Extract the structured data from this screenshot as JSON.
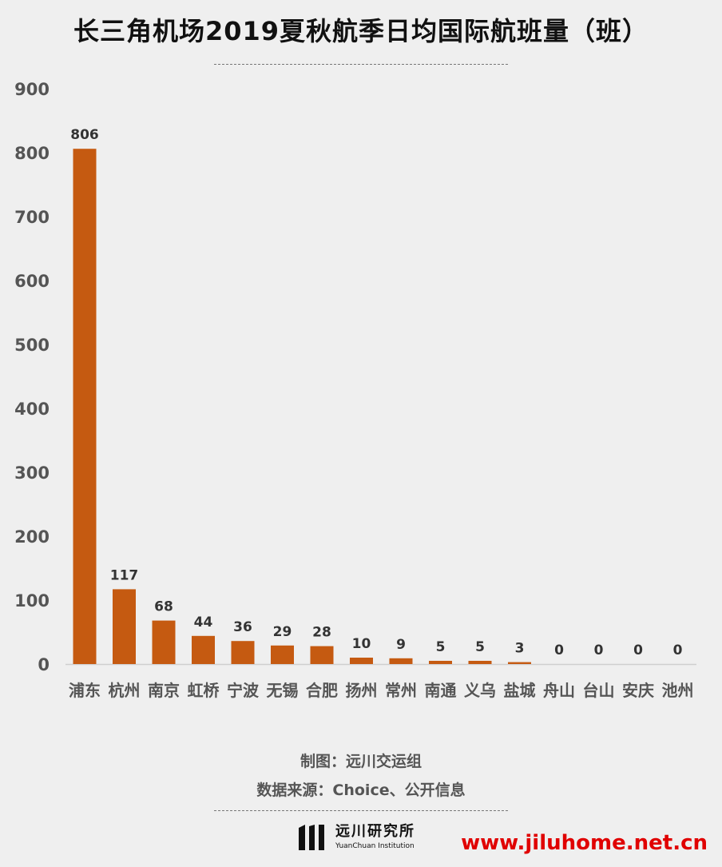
{
  "title": "长三角机场2019夏秋航季日均国际航班量（班）",
  "chart_data": {
    "type": "bar",
    "categories": [
      "浦东",
      "杭州",
      "南京",
      "虹桥",
      "宁波",
      "无锡",
      "合肥",
      "扬州",
      "常州",
      "南通",
      "义乌",
      "盐城",
      "舟山",
      "台山",
      "安庆",
      "池州"
    ],
    "values": [
      806,
      117,
      68,
      44,
      36,
      29,
      28,
      10,
      9,
      5,
      5,
      3,
      0,
      0,
      0,
      0
    ],
    "data_labels": [
      "806",
      "117",
      "68",
      "44",
      "36",
      "29",
      "28",
      "10",
      "9",
      "5",
      "5",
      "3",
      "0",
      "0",
      "0",
      "0"
    ],
    "ylim": [
      0,
      900
    ],
    "yticks": [
      0,
      100,
      200,
      300,
      400,
      500,
      600,
      700,
      800,
      900
    ],
    "ytick_labels": [
      "0",
      "100",
      "200",
      "300",
      "400",
      "500",
      "600",
      "700",
      "800",
      "900"
    ],
    "grid": false,
    "bar_color": "#c55a11"
  },
  "credits": {
    "maker": "制图：远川交运组",
    "source": "数据来源：Choice、公开信息"
  },
  "logo": {
    "name_cn": "远川研究所",
    "name_en": "YuanChuan Institution",
    "icon": "yuanchuan-logo-icon"
  },
  "watermark": "www.jiluhome.net.cn"
}
